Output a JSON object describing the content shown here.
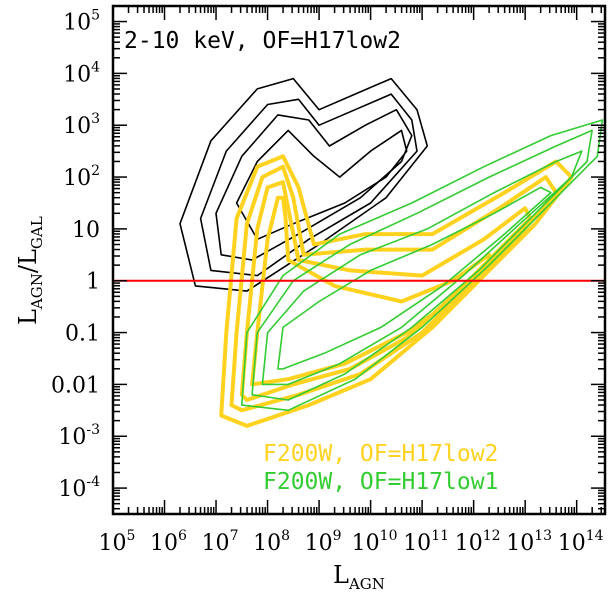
{
  "chart_data": {
    "type": "contour",
    "title": "",
    "annotation": "2-10 keV, OF=H17low2",
    "xlabel": {
      "main": "L",
      "sub": "AGN"
    },
    "ylabel": {
      "main": "L",
      "sub1": "AGN",
      "slash": "/L",
      "sub2": "GAL"
    },
    "xscale": "log",
    "yscale": "log",
    "xlim_log10": [
      5,
      14.55
    ],
    "ylim_log10": [
      -4.5,
      5.3
    ],
    "x_ticks": [
      {
        "base": "10",
        "exp": "5"
      },
      {
        "base": "10",
        "exp": "6"
      },
      {
        "base": "10",
        "exp": "7"
      },
      {
        "base": "10",
        "exp": "8"
      },
      {
        "base": "10",
        "exp": "9"
      },
      {
        "base": "10",
        "exp": "10"
      },
      {
        "base": "10",
        "exp": "11"
      },
      {
        "base": "10",
        "exp": "12"
      },
      {
        "base": "10",
        "exp": "13"
      },
      {
        "base": "10",
        "exp": "14"
      }
    ],
    "x_tick_values_log10": [
      5,
      6,
      7,
      8,
      9,
      10,
      11,
      12,
      13,
      14
    ],
    "y_ticks": [
      {
        "base": "10",
        "exp": "5"
      },
      {
        "base": "10",
        "exp": "4"
      },
      {
        "base": "10",
        "exp": "3"
      },
      {
        "base": "10",
        "exp": "2"
      },
      {
        "base": "10",
        "exp": ""
      },
      {
        "base": "1",
        "exp": ""
      },
      {
        "base": "0.1",
        "exp": ""
      },
      {
        "base": "0.01",
        "exp": ""
      },
      {
        "base": "10",
        "exp": "-3"
      },
      {
        "base": "10",
        "exp": "-4"
      }
    ],
    "y_tick_values_log10": [
      5,
      4,
      3,
      2,
      1,
      0,
      -1,
      -2,
      -3,
      -4
    ],
    "reference_line": {
      "y_log10": 0,
      "color": "#ff0000"
    },
    "legend": {
      "placement": "bottom-right"
    },
    "series": [
      {
        "name": "2-10 keV, OF=H17low2",
        "color": "#000000",
        "contours": [
          [
            [
              6.3,
              1.1
            ],
            [
              6.9,
              2.7
            ],
            [
              7.8,
              3.7
            ],
            [
              8.5,
              3.9
            ],
            [
              9.0,
              3.3
            ],
            [
              9.7,
              3.6
            ],
            [
              10.4,
              3.9
            ],
            [
              10.9,
              3.3
            ],
            [
              11.1,
              2.6
            ],
            [
              10.3,
              1.6
            ],
            [
              9.0,
              0.7
            ],
            [
              7.6,
              -0.2
            ],
            [
              6.6,
              -0.1
            ],
            [
              6.3,
              1.1
            ]
          ],
          [
            [
              6.7,
              1.2
            ],
            [
              7.2,
              2.5
            ],
            [
              8.0,
              3.4
            ],
            [
              8.6,
              3.5
            ],
            [
              9.0,
              3.0
            ],
            [
              9.7,
              3.3
            ],
            [
              10.4,
              3.6
            ],
            [
              10.8,
              3.1
            ],
            [
              10.9,
              2.5
            ],
            [
              10.0,
              1.5
            ],
            [
              8.8,
              0.8
            ],
            [
              7.8,
              0.1
            ],
            [
              6.9,
              0.2
            ],
            [
              6.7,
              1.2
            ]
          ],
          [
            [
              7.0,
              1.3
            ],
            [
              7.5,
              2.4
            ],
            [
              8.2,
              3.2
            ],
            [
              8.8,
              3.1
            ],
            [
              9.2,
              2.6
            ],
            [
              9.9,
              3.0
            ],
            [
              10.5,
              3.3
            ],
            [
              10.8,
              2.8
            ],
            [
              10.6,
              2.3
            ],
            [
              9.8,
              1.6
            ],
            [
              8.6,
              0.9
            ],
            [
              7.7,
              0.4
            ],
            [
              7.1,
              0.5
            ],
            [
              7.0,
              1.3
            ]
          ],
          [
            [
              7.4,
              1.5
            ],
            [
              7.8,
              2.3
            ],
            [
              8.4,
              2.9
            ],
            [
              8.9,
              2.4
            ],
            [
              9.4,
              2.0
            ],
            [
              10.0,
              2.5
            ],
            [
              10.6,
              2.9
            ],
            [
              10.7,
              2.5
            ],
            [
              10.3,
              2.0
            ],
            [
              9.5,
              1.5
            ],
            [
              8.5,
              1.1
            ],
            [
              7.8,
              0.8
            ],
            [
              7.4,
              1.5
            ]
          ]
        ]
      },
      {
        "name": "F200W, OF=H17low2",
        "color": "#ffd21f",
        "contours": [
          [
            [
              7.1,
              -2.6
            ],
            [
              7.2,
              -1.0
            ],
            [
              7.4,
              1.2
            ],
            [
              7.8,
              2.2
            ],
            [
              8.3,
              2.4
            ],
            [
              8.6,
              1.8
            ],
            [
              8.9,
              0.7
            ],
            [
              9.9,
              0.9
            ],
            [
              11.2,
              0.9
            ],
            [
              12.6,
              1.7
            ],
            [
              13.6,
              2.3
            ],
            [
              13.9,
              2.0
            ],
            [
              13.2,
              1.1
            ],
            [
              12.3,
              0.2
            ],
            [
              11.2,
              -0.9
            ],
            [
              10.0,
              -1.9
            ],
            [
              8.8,
              -2.4
            ],
            [
              7.6,
              -2.8
            ],
            [
              7.1,
              -2.6
            ]
          ],
          [
            [
              7.3,
              -2.4
            ],
            [
              7.4,
              -1.0
            ],
            [
              7.6,
              1.1
            ],
            [
              7.9,
              2.0
            ],
            [
              8.3,
              2.2
            ],
            [
              8.5,
              1.6
            ],
            [
              8.7,
              0.5
            ],
            [
              9.9,
              0.6
            ],
            [
              11.2,
              0.6
            ],
            [
              12.5,
              1.4
            ],
            [
              13.4,
              2.0
            ],
            [
              13.6,
              1.7
            ],
            [
              12.9,
              0.9
            ],
            [
              12.0,
              0.0
            ],
            [
              11.0,
              -1.0
            ],
            [
              9.8,
              -1.8
            ],
            [
              8.6,
              -2.2
            ],
            [
              7.5,
              -2.5
            ],
            [
              7.3,
              -2.4
            ]
          ],
          [
            [
              7.5,
              -2.2
            ],
            [
              7.6,
              -1.0
            ],
            [
              7.8,
              1.0
            ],
            [
              8.0,
              1.8
            ],
            [
              8.3,
              1.9
            ],
            [
              8.4,
              1.4
            ],
            [
              8.6,
              0.4
            ],
            [
              9.6,
              0.2
            ],
            [
              11.0,
              0.1
            ],
            [
              12.2,
              0.8
            ],
            [
              13.0,
              1.4
            ],
            [
              13.1,
              1.2
            ],
            [
              12.5,
              0.6
            ],
            [
              11.7,
              -0.2
            ],
            [
              10.7,
              -1.1
            ],
            [
              9.6,
              -1.7
            ],
            [
              8.5,
              -2.0
            ],
            [
              7.6,
              -2.3
            ],
            [
              7.5,
              -2.2
            ]
          ],
          [
            [
              7.7,
              -2.0
            ],
            [
              7.8,
              -1.0
            ],
            [
              8.0,
              0.8
            ],
            [
              8.2,
              1.6
            ],
            [
              8.3,
              1.6
            ],
            [
              8.35,
              1.2
            ],
            [
              8.4,
              0.4
            ],
            [
              9.3,
              -0.1
            ],
            [
              10.6,
              -0.4
            ],
            [
              11.6,
              0.0
            ],
            [
              12.3,
              0.5
            ],
            [
              12.3,
              0.3
            ],
            [
              11.7,
              -0.3
            ],
            [
              10.7,
              -1.0
            ],
            [
              9.5,
              -1.6
            ],
            [
              8.4,
              -1.9
            ],
            [
              7.7,
              -2.0
            ]
          ]
        ]
      },
      {
        "name": "F200W, OF=H17low1",
        "color": "#33cc33",
        "contours": [
          [
            [
              7.5,
              -2.4
            ],
            [
              7.6,
              -1.0
            ],
            [
              8.3,
              0.1
            ],
            [
              9.4,
              0.9
            ],
            [
              10.8,
              1.5
            ],
            [
              12.2,
              2.2
            ],
            [
              13.5,
              2.8
            ],
            [
              14.5,
              3.1
            ],
            [
              14.4,
              2.4
            ],
            [
              13.4,
              1.4
            ],
            [
              12.3,
              0.3
            ],
            [
              11.0,
              -0.9
            ],
            [
              9.7,
              -1.9
            ],
            [
              8.4,
              -2.5
            ],
            [
              7.5,
              -2.4
            ]
          ],
          [
            [
              7.7,
              -2.2
            ],
            [
              7.8,
              -1.0
            ],
            [
              8.5,
              0.0
            ],
            [
              9.6,
              0.7
            ],
            [
              10.9,
              1.3
            ],
            [
              12.3,
              2.0
            ],
            [
              13.6,
              2.6
            ],
            [
              14.3,
              2.9
            ],
            [
              14.2,
              2.3
            ],
            [
              13.2,
              1.3
            ],
            [
              12.1,
              0.2
            ],
            [
              10.8,
              -0.9
            ],
            [
              9.5,
              -1.8
            ],
            [
              8.4,
              -2.3
            ],
            [
              7.7,
              -2.2
            ]
          ],
          [
            [
              7.9,
              -2.0
            ],
            [
              8.0,
              -1.0
            ],
            [
              8.7,
              -0.2
            ],
            [
              9.8,
              0.5
            ],
            [
              11.1,
              1.0
            ],
            [
              12.4,
              1.7
            ],
            [
              13.6,
              2.3
            ],
            [
              14.1,
              2.5
            ],
            [
              13.9,
              2.0
            ],
            [
              12.9,
              1.1
            ],
            [
              11.8,
              0.1
            ],
            [
              10.6,
              -0.9
            ],
            [
              9.4,
              -1.6
            ],
            [
              8.4,
              -2.0
            ],
            [
              7.9,
              -2.0
            ]
          ],
          [
            [
              8.2,
              -1.7
            ],
            [
              8.3,
              -0.9
            ],
            [
              9.0,
              -0.4
            ],
            [
              10.0,
              0.2
            ],
            [
              11.2,
              0.7
            ],
            [
              12.4,
              1.3
            ],
            [
              13.3,
              1.8
            ],
            [
              13.5,
              1.7
            ],
            [
              12.6,
              0.9
            ],
            [
              11.4,
              -0.1
            ],
            [
              10.2,
              -0.9
            ],
            [
              9.1,
              -1.4
            ],
            [
              8.3,
              -1.7
            ],
            [
              8.2,
              -1.7
            ]
          ]
        ]
      }
    ]
  }
}
